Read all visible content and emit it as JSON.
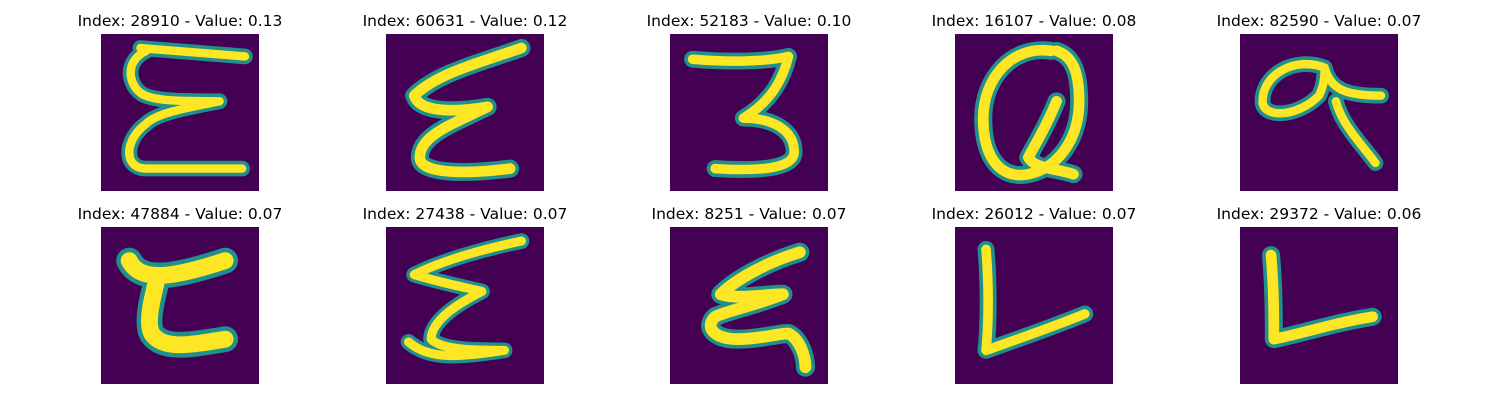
{
  "figure": {
    "colormap": "viridis",
    "background_color": "#440154",
    "highlight_color": "#fde725",
    "edge_color": "#21908d",
    "panels": [
      {
        "index": 28910,
        "value": "0.13",
        "title": "Index: 28910 - Value: 0.13",
        "glyph": "E (curly)"
      },
      {
        "index": 60631,
        "value": "0.12",
        "title": "Index: 60631 - Value: 0.12",
        "glyph": "E (zigzag)"
      },
      {
        "index": 52183,
        "value": "0.10",
        "title": "Index: 52183 - Value: 0.10",
        "glyph": "3"
      },
      {
        "index": 16107,
        "value": "0.08",
        "title": "Index: 16107 - Value: 0.08",
        "glyph": "Q"
      },
      {
        "index": 82590,
        "value": "0.07",
        "title": "Index: 82590 - Value: 0.07",
        "glyph": "a"
      },
      {
        "index": 47884,
        "value": "0.07",
        "title": "Index: 47884 - Value: 0.07",
        "glyph": "E (blocky)"
      },
      {
        "index": 27438,
        "value": "0.07",
        "title": "Index: 27438 - Value: 0.07",
        "glyph": "E (zigzag)"
      },
      {
        "index": 8251,
        "value": "0.07",
        "title": "Index: 8251 - Value: 0.07",
        "glyph": "E (slanted)"
      },
      {
        "index": 26012,
        "value": "0.07",
        "title": "Index: 26012 - Value: 0.07",
        "glyph": "L"
      },
      {
        "index": 29372,
        "value": "0.06",
        "title": "Index: 29372 - Value: 0.06",
        "glyph": "L"
      }
    ]
  }
}
